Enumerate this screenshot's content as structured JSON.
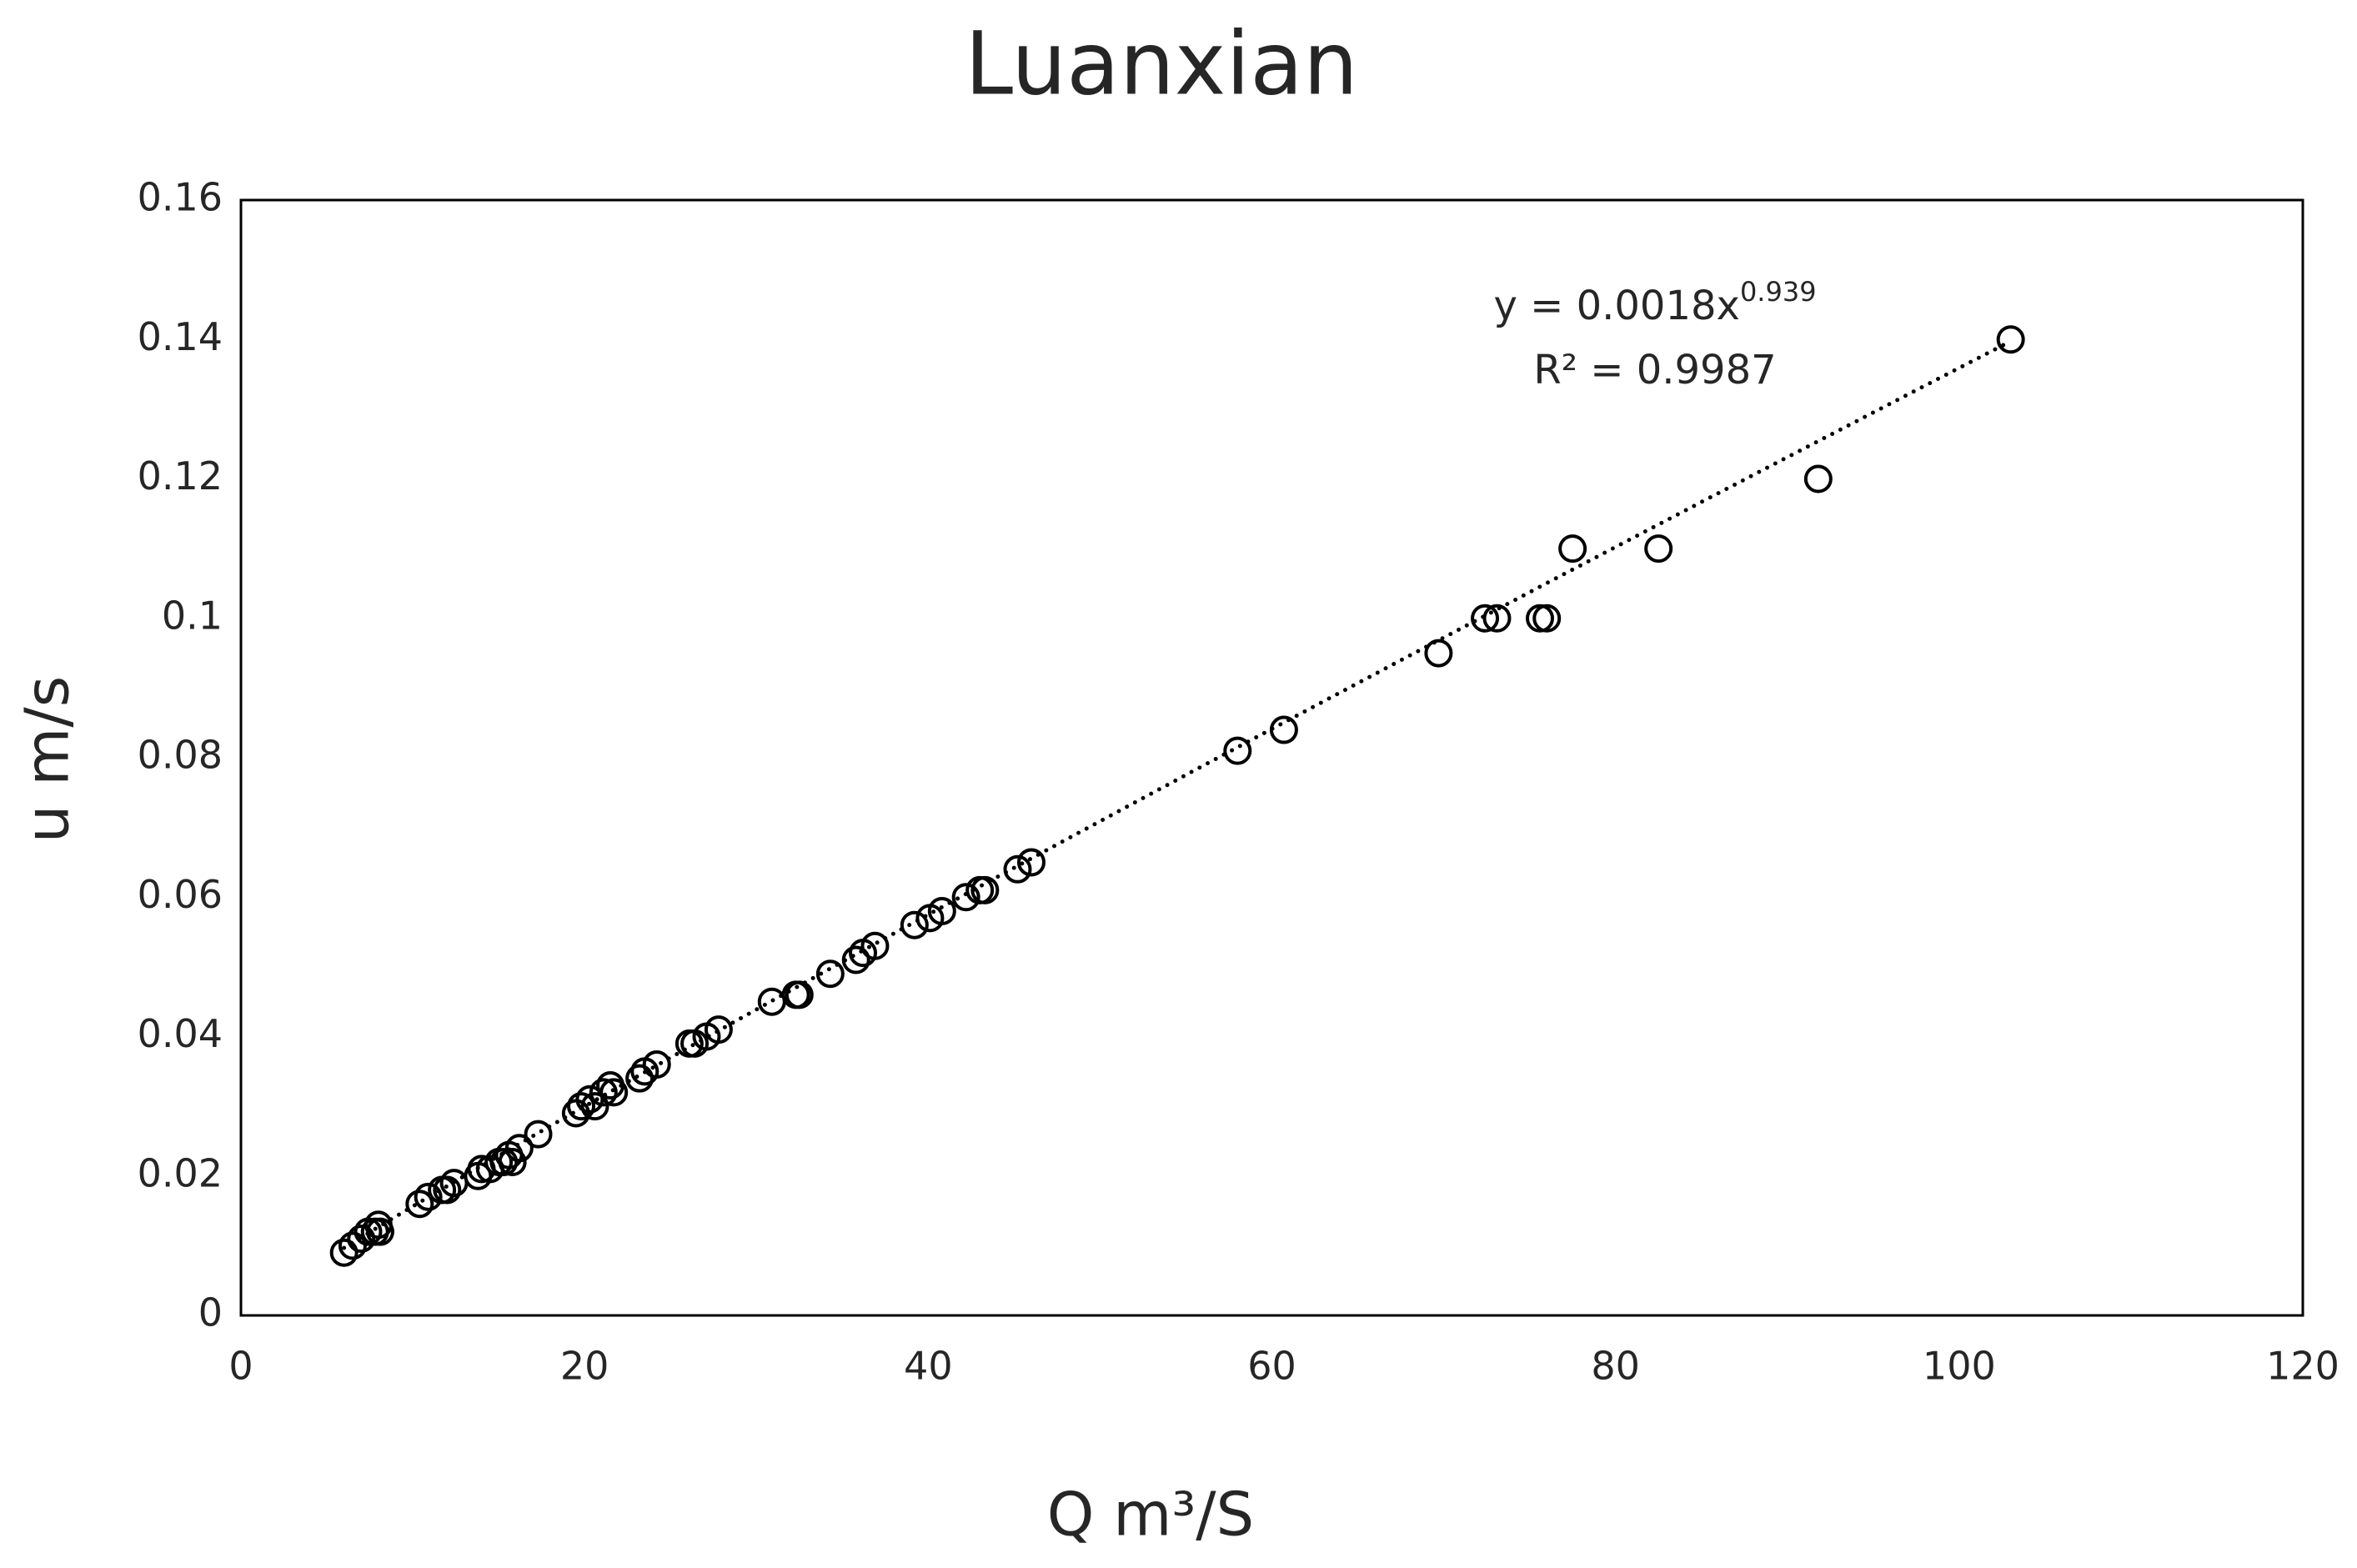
{
  "chart_data": {
    "type": "scatter",
    "title": "Luanxian",
    "x_label": "Q m³/S",
    "y_label": "u m/s",
    "xlim": [
      0,
      120
    ],
    "xticks": [
      0,
      20,
      40,
      60,
      80,
      100,
      120
    ],
    "ylim": [
      0,
      0.16
    ],
    "yticks": [
      0,
      0.02,
      0.04,
      0.06,
      0.08,
      0.1,
      0.12,
      0.14,
      0.16
    ],
    "grid": false,
    "color": "#000000",
    "trendline": {
      "type": "power",
      "equation": "y = 0.0018x",
      "exponent": "0.939",
      "r_squared": "R² = 0.9987"
    },
    "x": [
      6.0,
      6.5,
      7.0,
      7.4,
      7.8,
      8.0,
      8.1,
      10.4,
      10.9,
      11.7,
      12.0,
      12.4,
      13.8,
      14.0,
      14.5,
      15.0,
      15.3,
      15.6,
      15.8,
      16.2,
      17.3,
      19.5,
      19.8,
      20.3,
      20.6,
      21.1,
      21.5,
      21.7,
      23.2,
      23.5,
      24.2,
      26.1,
      26.4,
      27.1,
      27.8,
      30.9,
      32.3,
      32.5,
      34.3,
      35.8,
      36.2,
      36.9,
      39.2,
      40.1,
      40.8,
      42.2,
      43.0,
      43.3,
      45.2,
      46.0,
      58.0,
      60.7,
      69.7,
      72.4,
      73.1,
      75.6,
      76.0,
      77.5,
      82.5,
      91.8,
      103.0
    ],
    "values": [
      0.009,
      0.01,
      0.011,
      0.012,
      0.012,
      0.013,
      0.012,
      0.016,
      0.017,
      0.018,
      0.018,
      0.019,
      0.02,
      0.021,
      0.021,
      0.022,
      0.022,
      0.023,
      0.022,
      0.024,
      0.026,
      0.029,
      0.03,
      0.031,
      0.03,
      0.032,
      0.033,
      0.032,
      0.034,
      0.035,
      0.036,
      0.039,
      0.039,
      0.04,
      0.041,
      0.045,
      0.046,
      0.046,
      0.049,
      0.051,
      0.052,
      0.053,
      0.056,
      0.057,
      0.058,
      0.06,
      0.061,
      0.061,
      0.064,
      0.065,
      0.081,
      0.084,
      0.095,
      0.1,
      0.1,
      0.1,
      0.1,
      0.11,
      0.11,
      0.12,
      0.14
    ]
  }
}
